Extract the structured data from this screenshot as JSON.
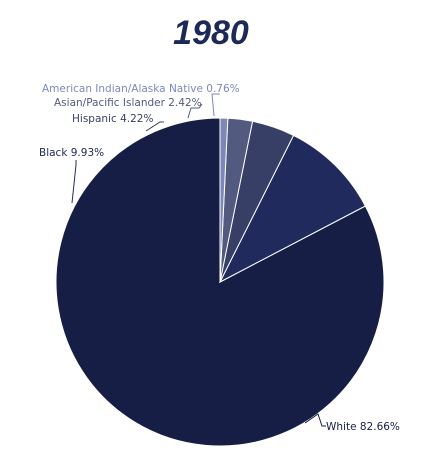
{
  "chart_data": {
    "type": "pie",
    "title": "1980",
    "start_angle_deg": 0,
    "direction": "counterclockwise",
    "slices": [
      {
        "label": "White",
        "value": 82.66,
        "display": "White 82.66%",
        "color": "#161e45",
        "label_color": "#161e45"
      },
      {
        "label": "Black",
        "value": 9.93,
        "display": "Black 9.93%",
        "color": "#212a5c",
        "label_color": "#212a5c"
      },
      {
        "label": "Hispanic",
        "value": 4.22,
        "display": "Hispanic 4.22%",
        "color": "#383f67",
        "label_color": "#383f67"
      },
      {
        "label": "Asian/Pacific Islander",
        "value": 2.42,
        "display": "Asian/Pacific Islander 2.42%",
        "color": "#525a80",
        "label_color": "#525a80"
      },
      {
        "label": "American Indian/Alaska Native",
        "value": 0.76,
        "display": "American Indian/Alaska Native 0.76%",
        "color": "#7d88b8",
        "label_color": "#7d88b8"
      }
    ]
  }
}
